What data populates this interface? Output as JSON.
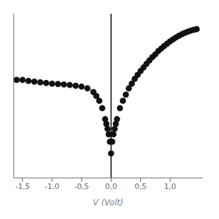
{
  "chart_data": {
    "type": "scatter",
    "xlabel": "V (Volt)",
    "log": "y",
    "tick_labels": "x",
    "color": "#111111",
    "xlim": [
      -1.65,
      1.55
    ],
    "xticks": [
      {
        "value": -1.5,
        "label": "-1,5"
      },
      {
        "value": -1.0,
        "label": "-1,0"
      },
      {
        "value": -0.5,
        "label": "-0,5"
      },
      {
        "value": 0.0,
        "label": "0,0"
      },
      {
        "value": 0.5,
        "label": "0,5"
      },
      {
        "value": 1.0,
        "label": "1,0"
      }
    ],
    "ylim": [
      1e-11,
      5.011872336272725e-05
    ],
    "vline_x": 0.0,
    "x": [
      -1.6,
      -1.5,
      -1.4,
      -1.3,
      -1.2,
      -1.1,
      -1.0,
      -0.9,
      -0.8,
      -0.7,
      -0.6,
      -0.5,
      -0.4,
      -0.3,
      -0.25,
      -0.2,
      -0.15,
      -0.1,
      -0.08,
      -0.06,
      -0.04,
      -0.02,
      0.0,
      0.02,
      0.04,
      0.06,
      0.08,
      0.1,
      0.15,
      0.2,
      0.25,
      0.3,
      0.35,
      0.4,
      0.45,
      0.5,
      0.55,
      0.6,
      0.65,
      0.7,
      0.75,
      0.8,
      0.85,
      0.9,
      0.95,
      1.0,
      1.05,
      1.1,
      1.15,
      1.2,
      1.25,
      1.3,
      1.35,
      1.4,
      1.45
    ],
    "values": [
      1e-07,
      1e-07,
      9e-08,
      8.5e-08,
      8e-08,
      7.5e-08,
      7e-08,
      6.8e-08,
      6.5e-08,
      6.2e-08,
      5.8e-08,
      5.3e-08,
      4.5e-08,
      3.2e-08,
      2.2e-08,
      1.4e-08,
      7e-09,
      2.5e-09,
      1.6e-09,
      1e-09,
      6e-10,
      3e-10,
      1e-10,
      3e-10,
      6e-10,
      1e-09,
      1.6e-09,
      2.5e-09,
      7e-09,
      1.4e-08,
      2.5e-08,
      4.5e-08,
      7e-08,
      1.1e-07,
      1.6e-07,
      2.3e-07,
      3.2e-07,
      4.5e-07,
      6.2e-07,
      8.5e-07,
      1.1e-06,
      1.5e-06,
      1.9e-06,
      2.4e-06,
      3e-06,
      3.7e-06,
      4.5e-06,
      5.4e-06,
      6.3e-06,
      7.3e-06,
      8.3e-06,
      9.3e-06,
      1.02e-05,
      1.1e-05,
      1.17e-05
    ]
  }
}
